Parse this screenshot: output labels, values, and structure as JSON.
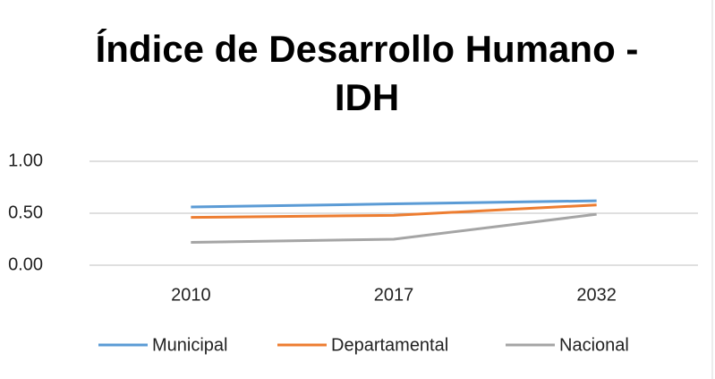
{
  "chart_data": {
    "type": "line",
    "title": "Índice de Desarrollo Humano - IDH",
    "categories": [
      "2010",
      "2017",
      "2032"
    ],
    "series": [
      {
        "name": "Municipal",
        "color": "#5b9bd5",
        "values": [
          0.56,
          0.59,
          0.62
        ]
      },
      {
        "name": "Departamental",
        "color": "#ed7d31",
        "values": [
          0.46,
          0.48,
          0.58
        ]
      },
      {
        "name": "Nacional",
        "color": "#a5a5a5",
        "values": [
          0.22,
          0.25,
          0.49
        ]
      }
    ],
    "ylim": [
      0,
      1
    ],
    "yticks": [
      {
        "value": 0,
        "label": "0.00"
      },
      {
        "value": 0.5,
        "label": "0.50"
      },
      {
        "value": 1,
        "label": "1.00"
      }
    ],
    "grid": true,
    "legend": "bottom"
  }
}
